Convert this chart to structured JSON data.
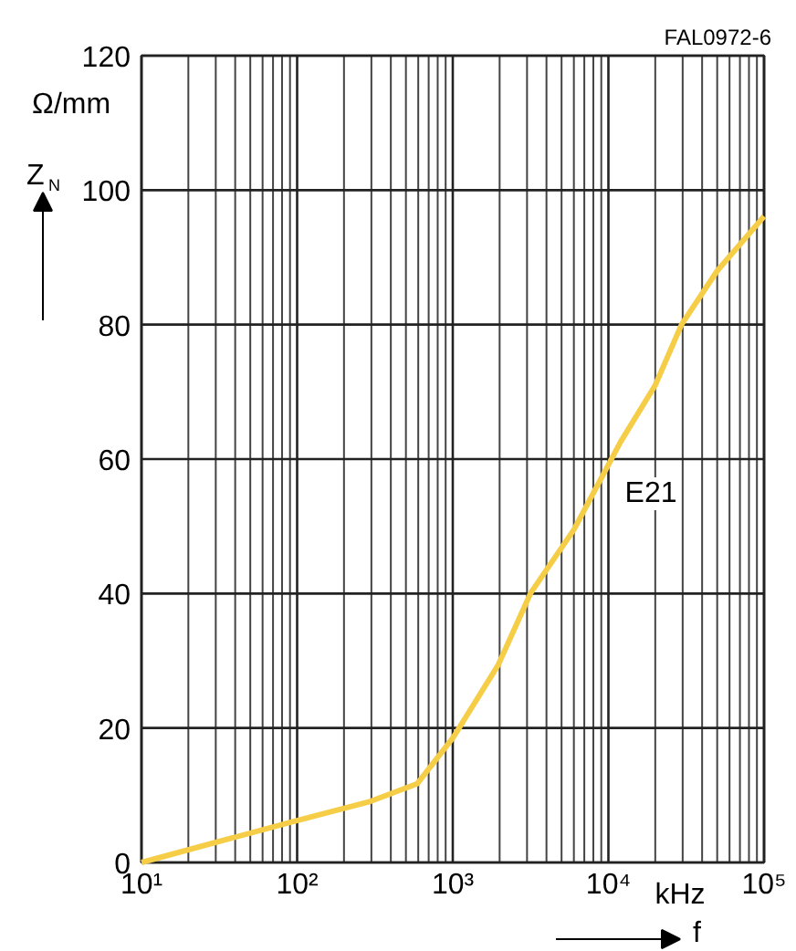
{
  "chart_data": {
    "type": "line",
    "ylabel": "Z$_{N}$",
    "xlabel": "f",
    "annotations": [
      "FAL0972-6",
      "Ω/mm",
      "kHz",
      "E21"
    ],
    "x": [
      10,
      91,
      288,
      590,
      1000,
      1950,
      3170,
      6000,
      12000,
      20000,
      29500,
      50000,
      100000
    ],
    "series": [
      {
        "color": "#f5cd47",
        "values": [
          0,
          6.0,
          9.0,
          11.7,
          18.5,
          29.3,
          40.1,
          49.5,
          62.6,
          71,
          80,
          88,
          96.1
        ]
      }
    ],
    "log": "x",
    "xlim": [
      10,
      100000
    ],
    "xticks": [
      {
        "value": 10,
        "label": "10¹"
      },
      {
        "value": 100,
        "label": "10²"
      },
      {
        "value": 1000,
        "label": "10³"
      },
      {
        "value": 10000,
        "label": "10⁴"
      },
      {
        "value": 100000,
        "label": "10⁵"
      }
    ],
    "ylim": [
      0,
      120
    ],
    "yticks": [
      0,
      20,
      40,
      60,
      80,
      100,
      120
    ],
    "grid": true,
    "marker": "none",
    "line_style": "solid"
  }
}
